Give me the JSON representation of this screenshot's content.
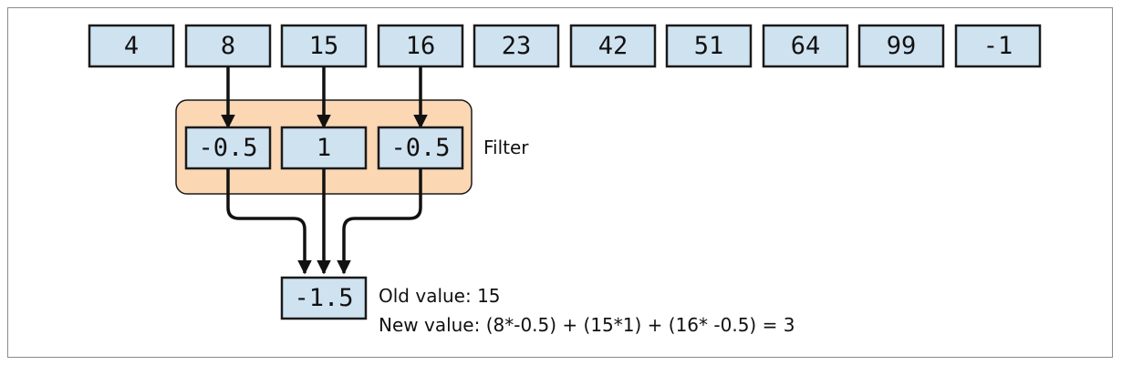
{
  "input_values": [
    "4",
    "8",
    "15",
    "16",
    "23",
    "42",
    "51",
    "64",
    "99",
    "-1"
  ],
  "filter_values": [
    "-0.5",
    "1",
    "-0.5"
  ],
  "filter_label": "Filter",
  "output_value": "-1.5",
  "old_value_text": "Old value: 15",
  "new_value_text": "New value: (8*-0.5) + (15*1) + (16* -0.5) = 3"
}
